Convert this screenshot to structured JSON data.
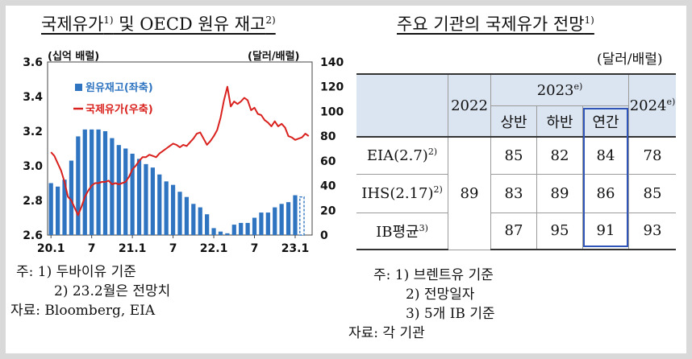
{
  "left": {
    "title": "국제유가",
    "title_sup": "1)",
    "title_rest": " 및 OECD 원유 재고",
    "title_sup2": "2)",
    "unit_left": "(십억 배럴)",
    "unit_right": "(달러/배럴)",
    "notes": [
      "주: 1) 두바이유 기준",
      "2) 23.2월은 전망치",
      "자료: Bloomberg, EIA"
    ]
  },
  "right": {
    "title": "주요 기관의 국제유가 전망",
    "title_sup": "1)",
    "unit": "(달러/배럴)",
    "header_2022": "2022",
    "header_2023": "2023",
    "header_2023_sup": "e)",
    "header_2024": "2024",
    "header_2024_sup": "e)",
    "sub_h1": "상반",
    "sub_h2": "하반",
    "sub_annual": "연간",
    "rows": [
      {
        "name": "EIA(2.7)",
        "sup": "2)",
        "h1": "85",
        "h2": "82",
        "annual": "84",
        "y2024": "78"
      },
      {
        "name": "IHS(2.17)",
        "sup": "2)",
        "h1": "83",
        "h2": "89",
        "annual": "86",
        "y2024": "85"
      },
      {
        "name": "IB평균",
        "sup": "3)",
        "h1": "87",
        "h2": "95",
        "annual": "91",
        "y2024": "93"
      }
    ],
    "val_2022": "89",
    "notes": [
      "주: 1) 브렌트유 기준",
      "2) 전망일자",
      "3) 5개 IB 기준",
      "자료: 각 기관"
    ]
  },
  "chart_data": {
    "type": "bar",
    "title": "국제유가 및 OECD 원유 재고",
    "x_tick_labels": [
      "20.1",
      "7",
      "21.1",
      "7",
      "22.1",
      "7",
      "23.1"
    ],
    "x_tick_months": [
      0,
      6,
      12,
      18,
      24,
      30,
      36
    ],
    "ylim_left": [
      2.6,
      3.6
    ],
    "yticks_left": [
      "2.6",
      "2.8",
      "3.0",
      "3.2",
      "3.4",
      "3.6"
    ],
    "ylim_right": [
      0,
      140
    ],
    "yticks_right": [
      "0",
      "20",
      "40",
      "60",
      "80",
      "100",
      "120",
      "140"
    ],
    "legend": [
      "원유재고(좌축)",
      "국제유가(우축)"
    ],
    "legend_placement": "top-left",
    "colors": {
      "bars": "#2e74c0",
      "line": "#d9211e",
      "forecast_bar": "#2e74c0"
    },
    "series": [
      {
        "name": "원유재고(좌축)",
        "axis": "left",
        "months": [
          0,
          1,
          2,
          3,
          4,
          5,
          6,
          7,
          8,
          9,
          10,
          11,
          12,
          13,
          14,
          15,
          16,
          17,
          18,
          19,
          20,
          21,
          22,
          23,
          24,
          25,
          26,
          27,
          28,
          29,
          30,
          31,
          32,
          33,
          34,
          35,
          36,
          37
        ],
        "values": [
          2.9,
          2.88,
          2.92,
          3.03,
          3.17,
          3.21,
          3.21,
          3.21,
          3.2,
          3.16,
          3.12,
          3.1,
          3.07,
          3.04,
          3.01,
          2.99,
          2.95,
          2.91,
          2.89,
          2.85,
          2.82,
          2.78,
          2.76,
          2.72,
          2.64,
          2.62,
          2.61,
          2.66,
          2.67,
          2.67,
          2.7,
          2.73,
          2.73,
          2.76,
          2.78,
          2.79,
          2.83,
          2.82
        ],
        "forecast_month": 37
      },
      {
        "name": "국제유가(우축)",
        "axis": "right",
        "months": [
          0,
          0.5,
          1,
          1.5,
          2,
          2.5,
          3,
          3.5,
          4,
          4.5,
          5,
          5.5,
          6,
          6.5,
          7,
          7.5,
          8,
          8.5,
          9,
          9.5,
          10,
          10.5,
          11,
          11.5,
          12,
          12.5,
          13,
          13.5,
          14,
          14.5,
          15,
          15.5,
          16,
          16.5,
          17,
          17.5,
          18,
          18.5,
          19,
          19.5,
          20,
          20.5,
          21,
          21.5,
          22,
          22.5,
          23,
          23.5,
          24,
          24.5,
          25,
          25.5,
          26,
          26.5,
          27,
          27.5,
          28,
          28.5,
          29,
          29.5,
          30,
          30.5,
          31,
          31.5,
          32,
          32.5,
          33,
          33.5,
          34,
          34.5,
          35,
          35.5,
          36,
          36.5,
          37,
          37.5,
          38
        ],
        "values": [
          67,
          64,
          58,
          52,
          43,
          31,
          28,
          22,
          16,
          23,
          31,
          36,
          40,
          42,
          42,
          43,
          43,
          44,
          41,
          42,
          41,
          42,
          43,
          47,
          53,
          56,
          60,
          63,
          63,
          65,
          64,
          63,
          66,
          68,
          70,
          72,
          74,
          73,
          71,
          73,
          72,
          75,
          78,
          82,
          83,
          78,
          73,
          76,
          80,
          85,
          95,
          109,
          120,
          104,
          108,
          106,
          108,
          111,
          109,
          101,
          103,
          98,
          97,
          93,
          91,
          88,
          92,
          88,
          90,
          87,
          80,
          79,
          77,
          78,
          79,
          82,
          80
        ]
      }
    ]
  }
}
